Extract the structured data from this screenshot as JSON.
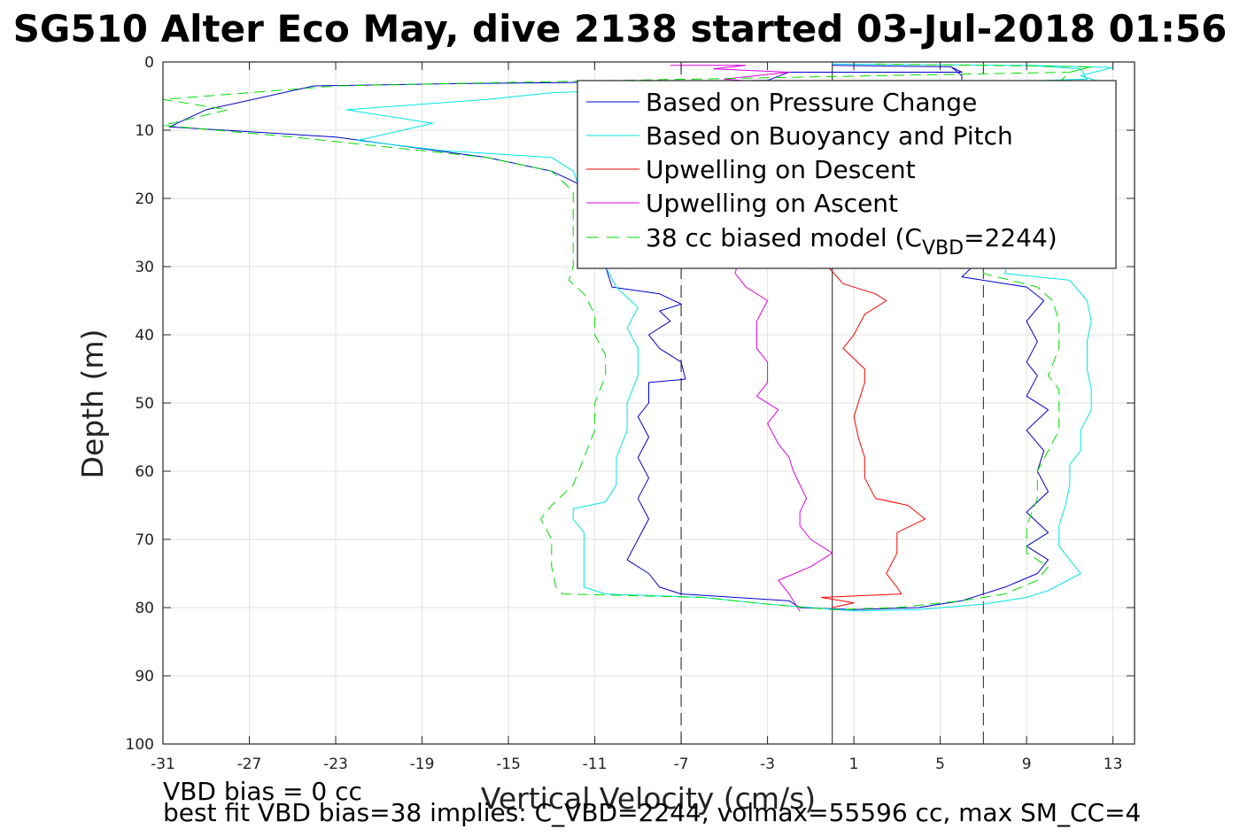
{
  "chart_data": {
    "type": "line",
    "title": "SG510 Alter Eco May, dive 2138 started 03-Jul-2018 01:56",
    "xlabel": "Vertical Velocity (cm/s)",
    "ylabel": "Depth (m)",
    "xlim": [
      -31,
      14
    ],
    "ylim": [
      100,
      0
    ],
    "y_reversed": true,
    "grid": true,
    "legend_position": "top-right",
    "x_ticks": [
      -31,
      -27,
      -23,
      -19,
      -15,
      -11,
      -7,
      -3,
      1,
      5,
      9,
      13
    ],
    "y_ticks": [
      0,
      10,
      20,
      30,
      40,
      50,
      60,
      70,
      80,
      90,
      100
    ],
    "reference_lines": [
      {
        "x": -7,
        "style": "dashed",
        "color": "#000000"
      },
      {
        "x": 7,
        "style": "dashed",
        "color": "#000000"
      },
      {
        "x": 0,
        "style": "solid",
        "color": "#000000"
      }
    ],
    "series": [
      {
        "name": "Based on Pressure Change",
        "color": "#0000cc",
        "style": "solid",
        "points": [
          [
            0,
            0.5
          ],
          [
            5.5,
            0.7
          ],
          [
            6,
            1.5
          ],
          [
            -2,
            1.5
          ],
          [
            -3,
            2.7
          ],
          [
            -18,
            3.2
          ],
          [
            -24,
            3.5
          ],
          [
            -29,
            7
          ],
          [
            -30.7,
            9.5
          ],
          [
            -23,
            11
          ],
          [
            -16,
            14
          ],
          [
            -13,
            16
          ],
          [
            -11,
            19
          ],
          [
            -11,
            28
          ],
          [
            -10.5,
            30
          ],
          [
            -10.2,
            33
          ],
          [
            -8,
            34
          ],
          [
            -7,
            35.5
          ],
          [
            -8,
            36.5
          ],
          [
            -7.5,
            38
          ],
          [
            -8.5,
            40
          ],
          [
            -8,
            42
          ],
          [
            -7.5,
            43
          ],
          [
            -7,
            44
          ],
          [
            -6.8,
            46.5
          ],
          [
            -8.5,
            47
          ],
          [
            -8.5,
            50
          ],
          [
            -9,
            52
          ],
          [
            -8.5,
            55
          ],
          [
            -9,
            58
          ],
          [
            -8.5,
            61
          ],
          [
            -9,
            64
          ],
          [
            -8.5,
            67
          ],
          [
            -9,
            70
          ],
          [
            -9.5,
            73
          ],
          [
            -8.5,
            75
          ],
          [
            -8,
            77
          ],
          [
            -7,
            78
          ],
          [
            -2,
            79
          ],
          [
            -1.5,
            80
          ],
          [
            1,
            80.3
          ],
          [
            4,
            80
          ],
          [
            6,
            79
          ],
          [
            8,
            77
          ],
          [
            9.5,
            75
          ],
          [
            10,
            73
          ],
          [
            9,
            71
          ],
          [
            10,
            69
          ],
          [
            9,
            66
          ],
          [
            10,
            63
          ],
          [
            9.5,
            60
          ],
          [
            9.8,
            57
          ],
          [
            9,
            54
          ],
          [
            10,
            51
          ],
          [
            9,
            49
          ],
          [
            9.5,
            46
          ],
          [
            9,
            44
          ],
          [
            9.5,
            41
          ],
          [
            9,
            38
          ],
          [
            9.8,
            35
          ],
          [
            9,
            33
          ],
          [
            6,
            31.5
          ],
          [
            6.5,
            30
          ],
          [
            6.5,
            22
          ],
          [
            6,
            15
          ],
          [
            6,
            9
          ],
          [
            6,
            5
          ],
          [
            6,
            2
          ],
          [
            5.5,
            0.7
          ]
        ]
      },
      {
        "name": "Based on Buoyancy and Pitch",
        "color": "#00e5e5",
        "style": "solid",
        "points": [
          [
            0,
            0.3
          ],
          [
            9,
            0.5
          ],
          [
            11.5,
            1
          ],
          [
            11.8,
            2.5
          ],
          [
            7,
            3
          ],
          [
            -5,
            3.5
          ],
          [
            -13,
            4.5
          ],
          [
            -16,
            5.5
          ],
          [
            -22.5,
            7
          ],
          [
            -18.5,
            9
          ],
          [
            -22,
            11.5
          ],
          [
            -18,
            13
          ],
          [
            -13,
            14
          ],
          [
            -12,
            16
          ],
          [
            -11.5,
            20
          ],
          [
            -11,
            25
          ],
          [
            -10.5,
            30
          ],
          [
            -10,
            33
          ],
          [
            -9,
            36
          ],
          [
            -9.5,
            39
          ],
          [
            -9,
            42
          ],
          [
            -9,
            46
          ],
          [
            -9.5,
            50
          ],
          [
            -9.5,
            54
          ],
          [
            -10,
            58
          ],
          [
            -10,
            62
          ],
          [
            -10.5,
            64.5
          ],
          [
            -12,
            65.5
          ],
          [
            -12,
            67
          ],
          [
            -11.5,
            69
          ],
          [
            -11.5,
            72
          ],
          [
            -11.5,
            75
          ],
          [
            -11.5,
            77
          ],
          [
            -10.5,
            78
          ],
          [
            -6,
            78.5
          ],
          [
            -3,
            79.5
          ],
          [
            1,
            80.5
          ],
          [
            4,
            80.3
          ],
          [
            7,
            79.5
          ],
          [
            9,
            78.5
          ],
          [
            10,
            77.5
          ],
          [
            11.5,
            75
          ],
          [
            11,
            73
          ],
          [
            10.5,
            71
          ],
          [
            10.5,
            68
          ],
          [
            10.8,
            65
          ],
          [
            11,
            62
          ],
          [
            11,
            59
          ],
          [
            11.5,
            57
          ],
          [
            11.5,
            54
          ],
          [
            12,
            51
          ],
          [
            12,
            48
          ],
          [
            11.8,
            45
          ],
          [
            11.8,
            41
          ],
          [
            12,
            38
          ],
          [
            11.8,
            35
          ],
          [
            11,
            32
          ],
          [
            8,
            31
          ],
          [
            8.5,
            25
          ],
          [
            9,
            18
          ],
          [
            9.5,
            10
          ],
          [
            10.5,
            5
          ],
          [
            12.5,
            3
          ],
          [
            11.5,
            2
          ],
          [
            13,
            0.8
          ],
          [
            9,
            0.5
          ]
        ]
      },
      {
        "name": "Upwelling on Descent",
        "color": "#ff0000",
        "style": "solid",
        "points": [
          [
            -1,
            9.5
          ],
          [
            -2,
            10
          ],
          [
            -1.5,
            12
          ],
          [
            -1,
            15
          ],
          [
            -0.5,
            20
          ],
          [
            -0.5,
            25
          ],
          [
            -0.2,
            30
          ],
          [
            0.5,
            32.5
          ],
          [
            2,
            34
          ],
          [
            2.5,
            35
          ],
          [
            1.5,
            37
          ],
          [
            1,
            40
          ],
          [
            0.5,
            42
          ],
          [
            1,
            43.5
          ],
          [
            1.5,
            45
          ],
          [
            1.5,
            47
          ],
          [
            1.2,
            50
          ],
          [
            1,
            52
          ],
          [
            1.2,
            55
          ],
          [
            1.5,
            58
          ],
          [
            1.5,
            61
          ],
          [
            2,
            64
          ],
          [
            3.5,
            65
          ],
          [
            4.3,
            67
          ],
          [
            3,
            69
          ],
          [
            3,
            72
          ],
          [
            2.5,
            75
          ],
          [
            3,
            77
          ],
          [
            3.2,
            78
          ],
          [
            -0.5,
            78.5
          ],
          [
            1,
            79.3
          ],
          [
            0,
            80
          ]
        ]
      },
      {
        "name": "Upwelling on Ascent",
        "color": "#e000e0",
        "style": "solid",
        "points": [
          [
            -1.5,
            80.5
          ],
          [
            -2,
            78
          ],
          [
            -2.5,
            76
          ],
          [
            -1,
            74
          ],
          [
            0,
            72
          ],
          [
            -1,
            70
          ],
          [
            -1.5,
            68
          ],
          [
            -1.5,
            66
          ],
          [
            -1.2,
            64
          ],
          [
            -1.5,
            62
          ],
          [
            -1.8,
            60
          ],
          [
            -2,
            58
          ],
          [
            -2.5,
            56
          ],
          [
            -3,
            53
          ],
          [
            -2.5,
            51
          ],
          [
            -3.5,
            49
          ],
          [
            -3,
            47
          ],
          [
            -3,
            44
          ],
          [
            -3.5,
            42
          ],
          [
            -3.5,
            38
          ],
          [
            -3,
            35
          ],
          [
            -4,
            33
          ],
          [
            -4.5,
            31
          ],
          [
            -4,
            25
          ],
          [
            -3.5,
            18
          ],
          [
            -3,
            12
          ],
          [
            -2.5,
            7
          ],
          [
            -2,
            4
          ],
          [
            -3,
            3
          ],
          [
            -5,
            2.5
          ],
          [
            -2,
            1.5
          ],
          [
            -5.5,
            1
          ],
          [
            -4,
            0.5
          ],
          [
            -7.5,
            0.5
          ]
        ]
      },
      {
        "name": "38 cc biased model (C_VBD=2244)",
        "color": "#00dd00",
        "style": "dashed",
        "points": [
          [
            2,
            0.3
          ],
          [
            12,
            0.7
          ],
          [
            11,
            1.5
          ],
          [
            -15,
            3
          ],
          [
            -23,
            3.5
          ],
          [
            -31,
            5.5
          ],
          [
            -28,
            7
          ],
          [
            -31,
            9.3
          ],
          [
            -25,
            11
          ],
          [
            -16,
            14
          ],
          [
            -13,
            16
          ],
          [
            -12,
            19
          ],
          [
            -12,
            25
          ],
          [
            -12,
            30
          ],
          [
            -12.2,
            32
          ],
          [
            -11.5,
            34
          ],
          [
            -11,
            37
          ],
          [
            -11,
            40
          ],
          [
            -10.5,
            43
          ],
          [
            -10.5,
            46
          ],
          [
            -11,
            50
          ],
          [
            -11,
            54
          ],
          [
            -11.5,
            58
          ],
          [
            -12,
            62
          ],
          [
            -13,
            65
          ],
          [
            -13.5,
            67
          ],
          [
            -13,
            70
          ],
          [
            -13,
            74
          ],
          [
            -12.8,
            77
          ],
          [
            -12.5,
            78
          ],
          [
            -6,
            78.5
          ],
          [
            -3,
            79.5
          ],
          [
            0,
            80.3
          ],
          [
            3,
            80
          ],
          [
            6,
            79
          ],
          [
            8,
            78
          ],
          [
            9.5,
            76
          ],
          [
            10,
            74
          ],
          [
            9,
            72
          ],
          [
            9,
            68
          ],
          [
            9.5,
            64
          ],
          [
            9.5,
            60
          ],
          [
            10,
            57
          ],
          [
            10.5,
            54
          ],
          [
            10.5,
            51
          ],
          [
            10.5,
            48
          ],
          [
            10,
            46
          ],
          [
            10.5,
            42
          ],
          [
            10.5,
            38
          ],
          [
            10.2,
            35
          ],
          [
            9.5,
            33
          ],
          [
            7,
            31
          ],
          [
            7.5,
            25
          ],
          [
            8,
            18
          ],
          [
            8.5,
            12
          ],
          [
            9,
            7
          ],
          [
            10.5,
            3
          ],
          [
            11,
            1.5
          ],
          [
            12,
            0.7
          ]
        ]
      }
    ],
    "legend": {
      "entries": [
        "Based on Pressure Change",
        "Based on Buoyancy and Pitch",
        "Upwelling on Descent",
        "Upwelling on Ascent"
      ],
      "last_entry_prefix": "38 cc biased model (C",
      "last_entry_subscript": "VBD",
      "last_entry_suffix": "=2244)"
    },
    "annotations": [
      "VBD bias = 0 cc",
      "best fit VBD bias=38 implies: C_VBD=2244, volmax=55596 cc, max SM_CC=4"
    ]
  }
}
